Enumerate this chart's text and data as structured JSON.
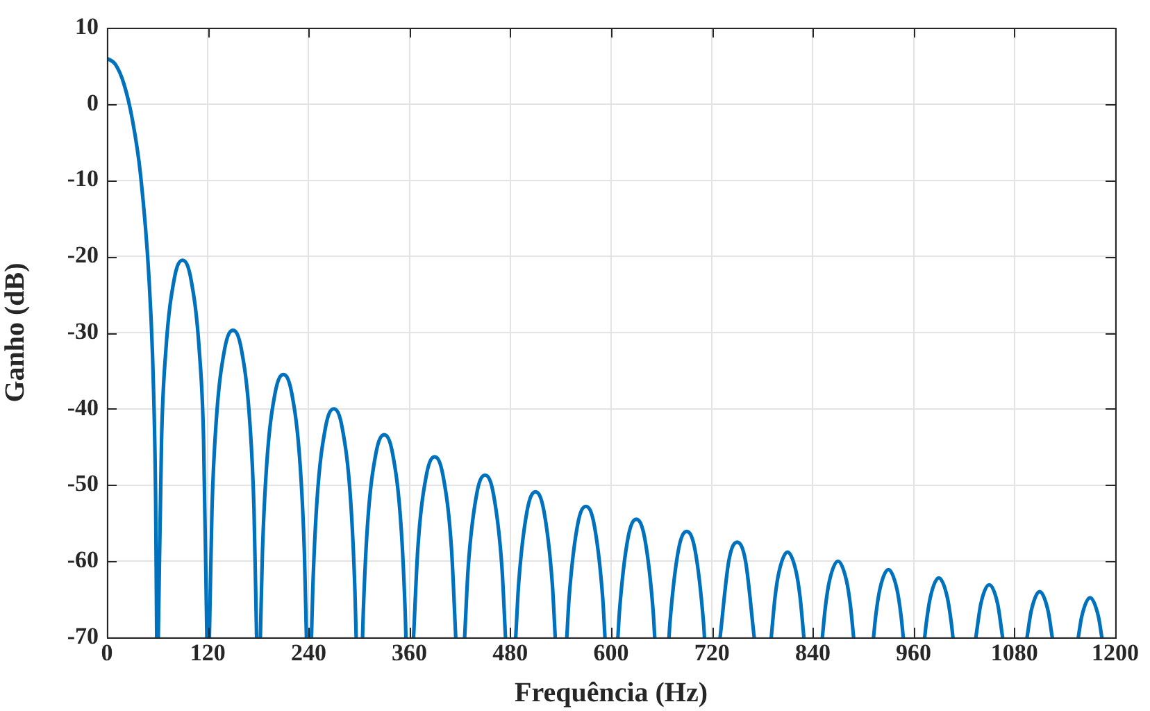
{
  "chart_data": {
    "type": "line",
    "xlabel": "Frequência (Hz)",
    "ylabel": "Ganho (dB)",
    "xlim": [
      0,
      1200
    ],
    "ylim": [
      -70,
      10
    ],
    "xticks": [
      0,
      120,
      240,
      360,
      480,
      600,
      720,
      840,
      960,
      1080,
      1200
    ],
    "yticks": [
      -70,
      -60,
      -50,
      -40,
      -30,
      -20,
      -10,
      0,
      10
    ],
    "grid": true,
    "marker": "none",
    "line_style": "solid",
    "x": [
      0,
      10,
      20,
      30,
      40,
      50,
      55,
      58,
      59.2,
      60,
      61.1,
      65,
      70,
      80,
      90,
      100,
      110,
      115,
      118.9,
      120,
      121.9,
      125,
      130,
      140,
      150,
      160,
      170,
      175,
      178.1,
      180,
      182.6,
      185,
      190,
      200,
      210,
      220,
      230,
      235,
      237.4,
      240,
      243.4,
      245,
      250,
      260,
      270,
      280,
      290,
      295,
      296.6,
      300,
      304.2,
      305,
      310,
      320,
      330,
      340,
      350,
      355,
      355.8,
      360,
      364.9,
      370,
      380,
      390,
      400,
      410,
      415.1,
      420,
      425.7,
      430,
      440,
      450,
      460,
      470,
      474.3,
      480,
      486.5,
      490,
      500,
      510,
      520,
      530,
      533.5,
      540,
      547.3,
      550,
      560,
      570,
      580,
      590,
      592.7,
      600,
      608.1,
      610,
      620,
      630,
      640,
      650,
      651.9,
      660,
      668.9,
      670,
      680,
      690,
      700,
      710,
      711.1,
      720,
      729.7,
      740,
      750,
      760,
      770.3,
      780,
      790.6,
      795,
      800,
      810,
      820,
      825,
      829.4,
      840,
      851.4,
      855,
      860,
      870,
      880,
      885,
      888.6,
      900,
      912.3,
      915,
      920,
      930,
      940,
      945,
      947.7,
      960,
      973.2,
      975,
      980,
      990,
      1000,
      1005,
      1006.8,
      1020,
      1034.1,
      1040,
      1050,
      1060,
      1065.9,
      1080,
      1095,
      1100,
      1110,
      1120,
      1125,
      1140,
      1156,
      1160,
      1170,
      1180,
      1184
    ],
    "series": [
      {
        "color": "#0072bd",
        "values": [
          6,
          5.2,
          2.7,
          -1.9,
          -9.3,
          -22.8,
          -35.7,
          -52.5,
          -70,
          null,
          -70,
          -44,
          -32.5,
          -23,
          -20.5,
          -23,
          -32.5,
          -44,
          -70,
          null,
          -70,
          -53.2,
          -41.7,
          -32.2,
          -29.7,
          -32.2,
          -41.7,
          -53.2,
          -70,
          null,
          -70,
          -59,
          -47.5,
          -38,
          -35.5,
          -38,
          -47.5,
          -59,
          -70,
          null,
          -70,
          -63.5,
          -52,
          -42.5,
          -40,
          -42.5,
          -52,
          -63.5,
          -70,
          null,
          -70,
          -66.9,
          -55.4,
          -45.9,
          -43.4,
          -45.9,
          -55.4,
          -66.9,
          -70,
          null,
          -70,
          -58.3,
          -48.8,
          -46.3,
          -48.8,
          -58.3,
          -70,
          null,
          -70,
          -60.7,
          -51.2,
          -48.7,
          -51.2,
          -60.7,
          -70,
          null,
          -70,
          -62.9,
          -53.4,
          -50.9,
          -53.4,
          -62.9,
          -70,
          null,
          -70,
          -64.8,
          -55.3,
          -52.8,
          -55.3,
          -64.8,
          -70,
          null,
          -70,
          -66.5,
          -57,
          -54.5,
          -57,
          -66.5,
          -70,
          null,
          -70,
          -68.1,
          -58.6,
          -56.1,
          -58.6,
          -68.1,
          -70,
          null,
          -70,
          -60,
          -57.5,
          -60,
          -70,
          null,
          -70,
          -64.8,
          -61.3,
          -58.8,
          -61.3,
          -64.8,
          -70,
          null,
          -70,
          -66,
          -62.5,
          -60,
          -62.5,
          -66,
          -70,
          null,
          -70,
          -67.1,
          -63.6,
          -61.1,
          -63.6,
          -67.1,
          -70,
          null,
          -70,
          -68.2,
          -64.7,
          -62.2,
          -64.7,
          -68.2,
          -70,
          null,
          -70,
          -65.6,
          -63.1,
          -65.6,
          -70,
          null,
          -70,
          -66.5,
          -64,
          -66.5,
          -70,
          null,
          -70,
          -67.3,
          -64.8,
          -67.3,
          -70
        ]
      }
    ]
  }
}
